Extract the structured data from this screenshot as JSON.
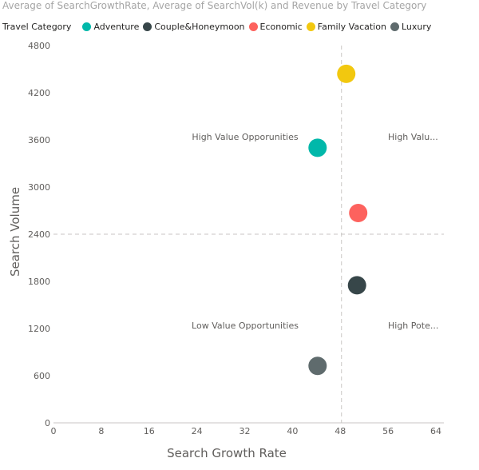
{
  "chart_data": {
    "type": "scatter",
    "title": "Average of SearchGrowthRate, Average of SearchVol(k) and Revenue by Travel Category",
    "legend_title": "Travel Category",
    "legend_position": "top-left",
    "xlabel": "Search Growth Rate",
    "ylabel": "Search Volume",
    "xlim": [
      0,
      64
    ],
    "ylim": [
      0,
      4800
    ],
    "x_ticks": [
      "0",
      "8",
      "16",
      "24",
      "32",
      "40",
      "48",
      "56",
      "64"
    ],
    "y_ticks": [
      "0",
      "600",
      "1200",
      "1800",
      "2400",
      "3000",
      "3600",
      "4200",
      "4800"
    ],
    "reference_lines": {
      "x": 48.2,
      "y": 2400
    },
    "quadrant_labels": {
      "top_left": "High Value Opporunities",
      "top_right": "High Valu...",
      "bottom_left": "Low Value Opportunities",
      "bottom_right": "High Pote..."
    },
    "series": [
      {
        "name": "Adventure",
        "color": "#01b8aa",
        "x": 44.2,
        "y": 3500
      },
      {
        "name": "Couple&Honeymoon",
        "color": "#374649",
        "x": 50.8,
        "y": 1750
      },
      {
        "name": "Economic",
        "color": "#fd625e",
        "x": 51.0,
        "y": 2670
      },
      {
        "name": "Family Vacation",
        "color": "#f2c80f",
        "x": 49.0,
        "y": 4440
      },
      {
        "name": "Luxury",
        "color": "#5f6b6d",
        "x": 44.2,
        "y": 725
      }
    ]
  }
}
